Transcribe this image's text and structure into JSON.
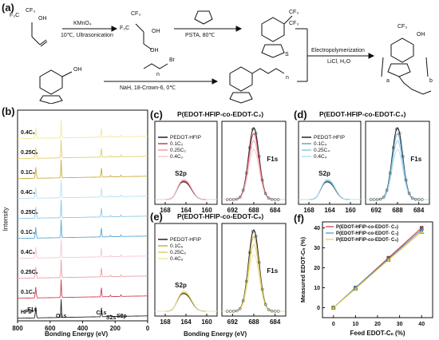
{
  "panel_labels": {
    "a": "(a)",
    "b": "(b)",
    "c": "(c)",
    "d": "(d)",
    "e": "(e)",
    "f": "(f)"
  },
  "scheme": {
    "reagent1": "KMnO₄",
    "cond1": "10℃, Ultrasonication",
    "cond2": "PSTA, 80℃",
    "reagent3": "Br",
    "cond3": "NaH, 18-Crown-6, 0℃",
    "electro": "Electropolymerization",
    "electro_cond": "LiCl, H₂O",
    "atoms": {
      "cf3": "CF₃",
      "f3c": "F₃C",
      "oh": "OH",
      "o": "O",
      "s": "S",
      "n": "n",
      "a": "a",
      "b": "b"
    }
  },
  "colors": {
    "hfip": "#222222",
    "c2_01": "#d04050",
    "c2_025": "#e8a0a8",
    "c2_04": "#f4c8d0",
    "c4_01": "#5aa7d8",
    "c4_025": "#8cc8e8",
    "c4_04": "#b8e0f0",
    "c6_01": "#c8b040",
    "c6_025": "#e0d070",
    "c6_04": "#f0e8a0",
    "f_c2": "#d03040",
    "f_c4": "#4a90d0",
    "f_c6": "#e8d040"
  },
  "panel_b": {
    "xlabel": "Bonding Energy (eV)",
    "ylabel": "Intensity",
    "xticks": [
      "800",
      "600",
      "400",
      "200",
      "0"
    ],
    "traces": [
      "0.4C₆",
      "0.25C₆",
      "0.1C₆",
      "0.4C₄",
      "0.25C₄",
      "0.1C₄",
      "0.4C₂",
      "0.25C₂",
      "0.1C₂",
      "HFIP"
    ],
    "peaks": {
      "f1s": "F1s",
      "o1s": "O1s",
      "c1s": "C1s",
      "s2s": "S2s",
      "s2p": "S2p"
    }
  },
  "panel_c": {
    "title": "P(EDOT-HFIP-co-EDOT-C₂)",
    "legend": [
      "PEDOT-HFIP",
      "0.1C₂",
      "0.25C₂",
      "0.4C₂"
    ]
  },
  "panel_d": {
    "title": "P(EDOT-HFIP-co-EDOT-C₄)",
    "legend": [
      "PEDOT-HFIP",
      "0.1C₄",
      "0.25C₄",
      "0.4C₄"
    ]
  },
  "panel_e": {
    "title": "P(EDOT-HFIP-co-EDOT-C₆)",
    "legend": [
      "PEDOT-HFIP",
      "0.1C₆",
      "0.25C₆",
      "0.4C₆"
    ],
    "xlabel": "Bonding Energy (eV)"
  },
  "hr_xps": {
    "s2p_ticks": [
      "168",
      "164",
      "160"
    ],
    "f1s_ticks": [
      "692",
      "688",
      "684"
    ],
    "s2p_label": "S2p",
    "f1s_label": "F1s"
  },
  "chart_data": [
    {
      "type": "line",
      "panel": "f",
      "xlabel": "Feed EDOT-Cₙ (%)",
      "ylabel": "Measured EDOT-Cₙ (%)",
      "x": [
        0,
        10,
        25,
        40
      ],
      "xlim": [
        -5,
        45
      ],
      "ylim": [
        -5,
        43
      ],
      "xticks": [
        "0",
        "10",
        "20",
        "30",
        "40"
      ],
      "yticks": [
        "0",
        "10",
        "20",
        "30",
        "40"
      ],
      "legend_position": "top-left",
      "series": [
        {
          "name": "P(EDOT-HFIP-co-EDOT- C₂)",
          "values": [
            0,
            10,
            25,
            40
          ]
        },
        {
          "name": "P(EDOT-HFIP-co-EDOT- C₄)",
          "values": [
            0,
            10,
            24.5,
            39
          ]
        },
        {
          "name": "P(EDOT-HFIP-co-EDOT- C₆)",
          "values": [
            0,
            9.5,
            24,
            38
          ]
        }
      ]
    }
  ]
}
